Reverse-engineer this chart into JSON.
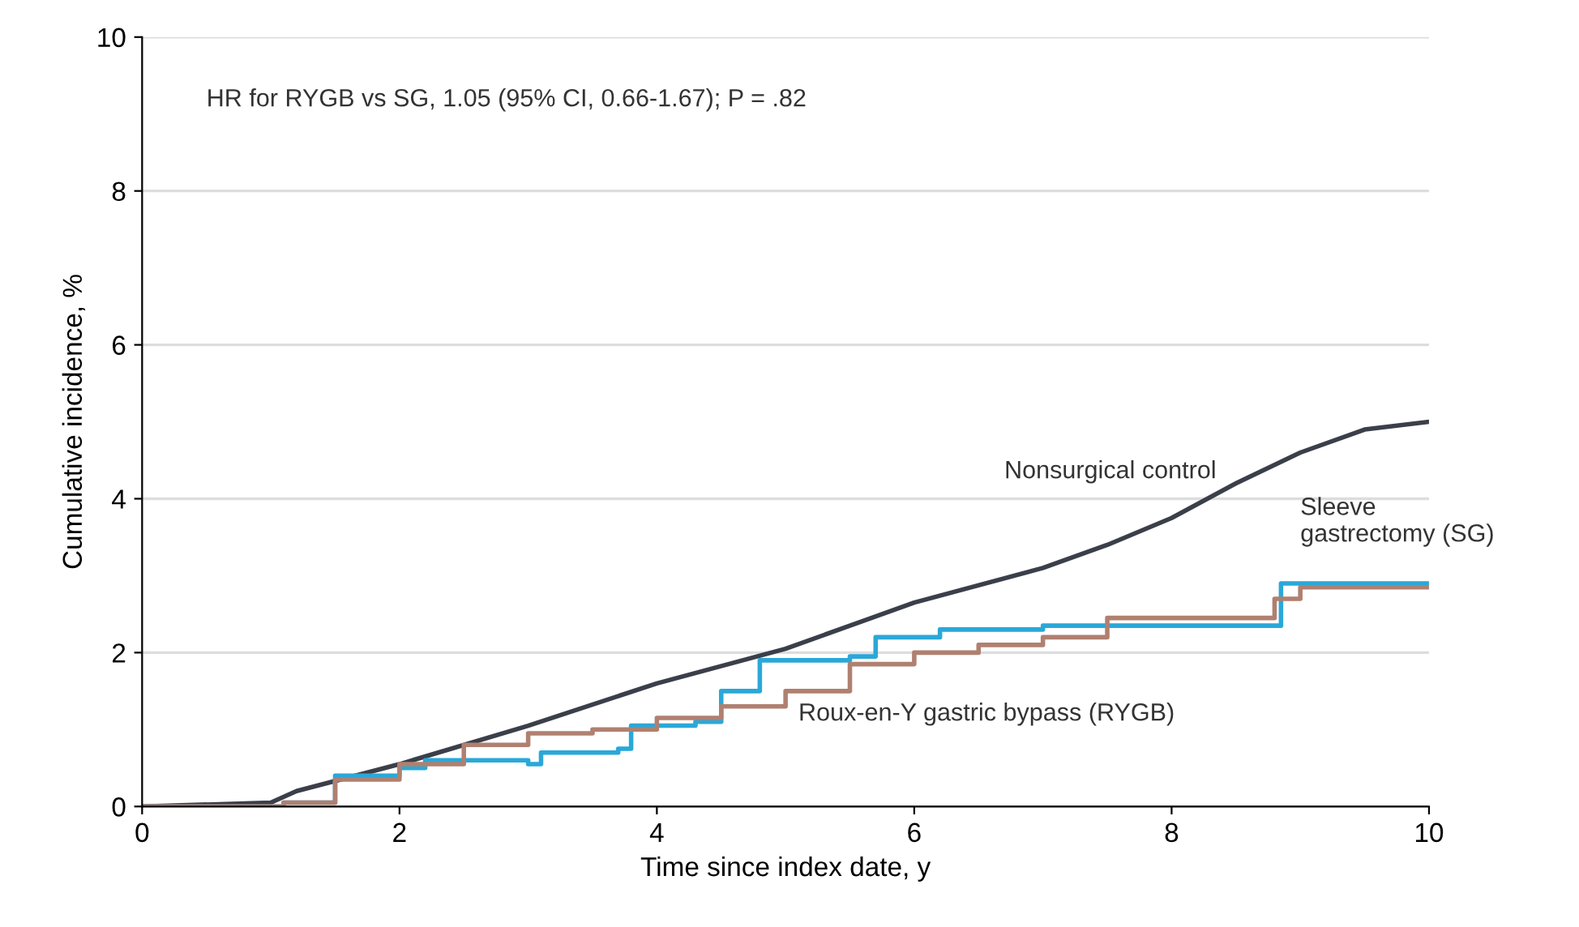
{
  "chart_data": {
    "type": "line",
    "xlabel": "Time since index date, y",
    "ylabel": "Cumulative incidence, %",
    "annotations": [
      "HR for RYGB vs SG, 1.05 (95% CI, 0.66-1.67); P = .82"
    ],
    "xlim": [
      0,
      10
    ],
    "xticks": [
      0,
      2,
      4,
      6,
      8,
      10
    ],
    "ylim": [
      0,
      10
    ],
    "yticks": [
      0,
      2,
      4,
      6,
      8,
      10
    ],
    "grid": "y",
    "legend": false,
    "series": [
      {
        "name": "Nonsurgical control",
        "color": "#3a3f4a",
        "x": [
          0,
          1,
          1.2,
          2,
          3,
          4,
          5,
          6,
          7,
          7.5,
          8,
          8.5,
          9,
          9.5,
          10
        ],
        "values": [
          0,
          0.05,
          0.2,
          0.55,
          1.05,
          1.6,
          2.05,
          2.65,
          3.1,
          3.4,
          3.75,
          4.2,
          4.6,
          4.9,
          5.0
        ]
      },
      {
        "name": "Sleeve gastrectomy (SG)",
        "type": "step",
        "color": "#2aa8d8",
        "x": [
          0,
          1.1,
          1.5,
          2,
          2.2,
          3,
          3.1,
          3.7,
          3.8,
          4.3,
          4.5,
          4.8,
          5.5,
          5.7,
          6.2,
          7,
          8.8,
          8.85,
          10
        ],
        "values": [
          0,
          0.05,
          0.4,
          0.5,
          0.6,
          0.55,
          0.7,
          0.75,
          1.05,
          1.1,
          1.5,
          1.9,
          1.95,
          2.2,
          2.3,
          2.35,
          2.35,
          2.9,
          2.9
        ]
      },
      {
        "name": "Roux-en-Y gastric bypass (RYGB)",
        "type": "step",
        "color": "#b08070",
        "x": [
          0,
          1.1,
          1.5,
          2,
          2.5,
          3,
          3.5,
          4,
          4.5,
          5,
          5.5,
          6,
          6.5,
          7,
          7.5,
          8.5,
          8.8,
          9,
          10
        ],
        "values": [
          0,
          0.05,
          0.35,
          0.55,
          0.8,
          0.95,
          1.0,
          1.15,
          1.3,
          1.5,
          1.85,
          2.0,
          2.1,
          2.2,
          2.45,
          2.45,
          2.7,
          2.85,
          2.85
        ]
      }
    ]
  }
}
